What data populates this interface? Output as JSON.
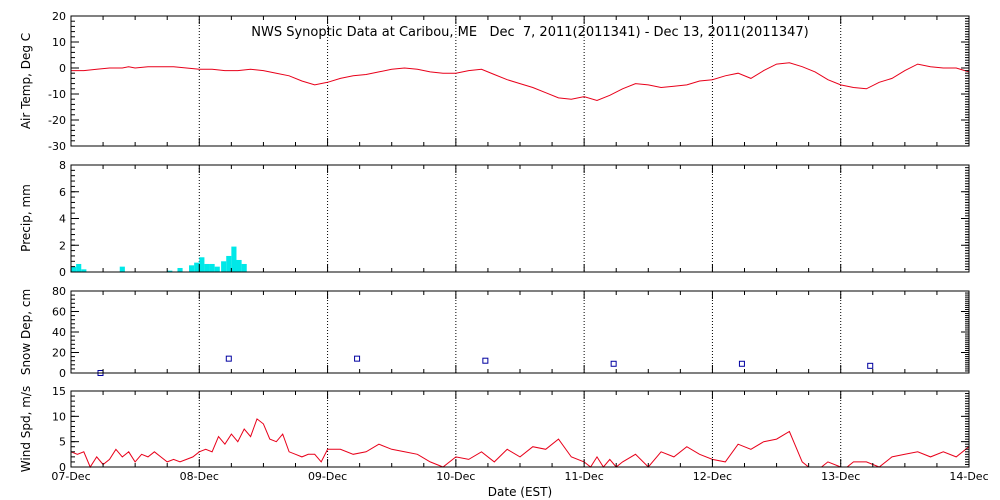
{
  "title": "NWS Synoptic Data at Caribou, ME   Dec  7, 2011(2011341) - Dec 13, 2011(2011347)",
  "xlabel": "Date (EST)",
  "x_ticks": [
    "07-Dec",
    "08-Dec",
    "09-Dec",
    "10-Dec",
    "11-Dec",
    "12-Dec",
    "13-Dec",
    "14-Dec"
  ],
  "colors": {
    "temp": "#e8001a",
    "precip": "#00e8e8",
    "snow": "#0000a0",
    "wind": "#e8001a"
  },
  "chart_data": [
    {
      "type": "line",
      "name": "air-temp",
      "ylabel": "Air Temp, Deg C",
      "ylim": [
        -30,
        20
      ],
      "yticks": [
        -30,
        -20,
        -10,
        0,
        10,
        20
      ],
      "x_unit": "days since 07-Dec 00:00 EST",
      "x": [
        0.0,
        0.1,
        0.2,
        0.3,
        0.4,
        0.45,
        0.5,
        0.6,
        0.7,
        0.8,
        0.9,
        1.0,
        1.1,
        1.2,
        1.3,
        1.4,
        1.5,
        1.6,
        1.7,
        1.8,
        1.9,
        2.0,
        2.1,
        2.2,
        2.3,
        2.4,
        2.5,
        2.6,
        2.7,
        2.8,
        2.9,
        3.0,
        3.1,
        3.2,
        3.3,
        3.4,
        3.5,
        3.6,
        3.7,
        3.8,
        3.9,
        4.0,
        4.1,
        4.2,
        4.3,
        4.4,
        4.5,
        4.6,
        4.7,
        4.8,
        4.9,
        5.0,
        5.1,
        5.2,
        5.3,
        5.4,
        5.5,
        5.6,
        5.7,
        5.8,
        5.9,
        6.0,
        6.1,
        6.2,
        6.3,
        6.4,
        6.5,
        6.6,
        6.7,
        6.8,
        6.9,
        7.0
      ],
      "values": [
        -1.0,
        -1.0,
        -0.5,
        0.0,
        0.0,
        0.5,
        0.0,
        0.5,
        0.5,
        0.5,
        0.0,
        -0.5,
        -0.5,
        -1.0,
        -1.0,
        -0.5,
        -1.0,
        -2.0,
        -3.0,
        -5.0,
        -6.5,
        -5.5,
        -4.0,
        -3.0,
        -2.5,
        -1.5,
        -0.5,
        0.0,
        -0.5,
        -1.5,
        -2.0,
        -2.0,
        -1.0,
        -0.5,
        -2.5,
        -4.5,
        -6.0,
        -7.5,
        -9.5,
        -11.5,
        -12.0,
        -11.0,
        -12.5,
        -10.5,
        -8.0,
        -6.0,
        -6.5,
        -7.5,
        -7.0,
        -6.5,
        -5.0,
        -4.5,
        -3.0,
        -2.0,
        -4.0,
        -1.0,
        1.5,
        2.0,
        0.5,
        -1.5,
        -4.5,
        -6.5,
        -7.5,
        -8.0,
        -5.5,
        -4.0,
        -1.0,
        1.5,
        0.5,
        0.0,
        0.0,
        -1.5
      ]
    },
    {
      "type": "bar",
      "name": "precip",
      "ylabel": "Precip, mm",
      "ylim": [
        0,
        8
      ],
      "yticks": [
        0,
        2,
        4,
        6,
        8
      ],
      "x_unit": "days since 07-Dec 00:00 EST",
      "bar_width": 0.04,
      "x": [
        0.0,
        0.04,
        0.08,
        0.38,
        0.75,
        0.83,
        0.92,
        0.96,
        1.0,
        1.04,
        1.08,
        1.12,
        1.17,
        1.21,
        1.25,
        1.29,
        1.33
      ],
      "values": [
        0.4,
        0.6,
        0.2,
        0.4,
        0.1,
        0.3,
        0.5,
        0.7,
        1.1,
        0.6,
        0.6,
        0.4,
        0.8,
        1.2,
        1.9,
        0.9,
        0.6
      ]
    },
    {
      "type": "scatter",
      "name": "snow-depth",
      "ylabel": "Snow Dep, cm",
      "ylim": [
        0,
        80
      ],
      "yticks": [
        0,
        20,
        40,
        60,
        80
      ],
      "x_unit": "days since 07-Dec 00:00 EST",
      "x": [
        0.23,
        1.23,
        2.23,
        3.23,
        4.23,
        5.23,
        6.23
      ],
      "values": [
        0,
        14,
        14,
        12,
        9,
        9,
        7
      ]
    },
    {
      "type": "line",
      "name": "wind-speed",
      "ylabel": "Wind Spd, m/s",
      "ylim": [
        0,
        15
      ],
      "yticks": [
        0,
        5,
        10,
        15
      ],
      "x_unit": "days since 07-Dec 00:00 EST",
      "x": [
        0.0,
        0.05,
        0.1,
        0.15,
        0.2,
        0.25,
        0.3,
        0.35,
        0.4,
        0.45,
        0.5,
        0.55,
        0.6,
        0.65,
        0.7,
        0.75,
        0.8,
        0.85,
        0.9,
        0.95,
        1.0,
        1.05,
        1.1,
        1.15,
        1.2,
        1.25,
        1.3,
        1.35,
        1.4,
        1.45,
        1.5,
        1.55,
        1.6,
        1.65,
        1.7,
        1.75,
        1.8,
        1.85,
        1.9,
        1.95,
        2.0,
        2.1,
        2.2,
        2.3,
        2.4,
        2.5,
        2.6,
        2.7,
        2.8,
        2.9,
        3.0,
        3.1,
        3.2,
        3.3,
        3.4,
        3.5,
        3.6,
        3.7,
        3.8,
        3.9,
        4.0,
        4.05,
        4.1,
        4.15,
        4.2,
        4.25,
        4.3,
        4.4,
        4.5,
        4.6,
        4.7,
        4.8,
        4.9,
        5.0,
        5.1,
        5.2,
        5.3,
        5.4,
        5.5,
        5.6,
        5.65,
        5.7,
        5.75,
        5.8,
        5.85,
        5.9,
        6.0,
        6.05,
        6.1,
        6.2,
        6.3,
        6.4,
        6.5,
        6.6,
        6.7,
        6.8,
        6.9,
        7.0
      ],
      "values": [
        3.0,
        2.5,
        3.0,
        0.0,
        2.0,
        0.5,
        1.5,
        3.5,
        2.0,
        3.0,
        1.0,
        2.5,
        2.0,
        3.0,
        2.0,
        1.0,
        1.5,
        1.0,
        1.5,
        2.0,
        3.0,
        3.5,
        3.0,
        6.0,
        4.5,
        6.5,
        5.0,
        7.5,
        6.0,
        9.5,
        8.5,
        5.5,
        5.0,
        6.5,
        3.0,
        2.5,
        2.0,
        2.5,
        2.5,
        1.0,
        3.5,
        3.5,
        2.5,
        3.0,
        4.5,
        3.5,
        3.0,
        2.5,
        1.0,
        0.0,
        2.0,
        1.5,
        3.0,
        1.0,
        3.5,
        2.0,
        4.0,
        3.5,
        5.5,
        2.0,
        1.0,
        0.0,
        2.0,
        0.0,
        1.5,
        0.0,
        1.0,
        2.5,
        0.0,
        3.0,
        2.0,
        4.0,
        2.5,
        1.5,
        1.0,
        4.5,
        3.5,
        5.0,
        5.5,
        7.0,
        4.0,
        1.0,
        0.0,
        0.0,
        0.0,
        1.0,
        0.0,
        0.0,
        1.0,
        1.0,
        0.0,
        2.0,
        2.5,
        3.0,
        2.0,
        3.0,
        2.0,
        4.0
      ]
    }
  ]
}
